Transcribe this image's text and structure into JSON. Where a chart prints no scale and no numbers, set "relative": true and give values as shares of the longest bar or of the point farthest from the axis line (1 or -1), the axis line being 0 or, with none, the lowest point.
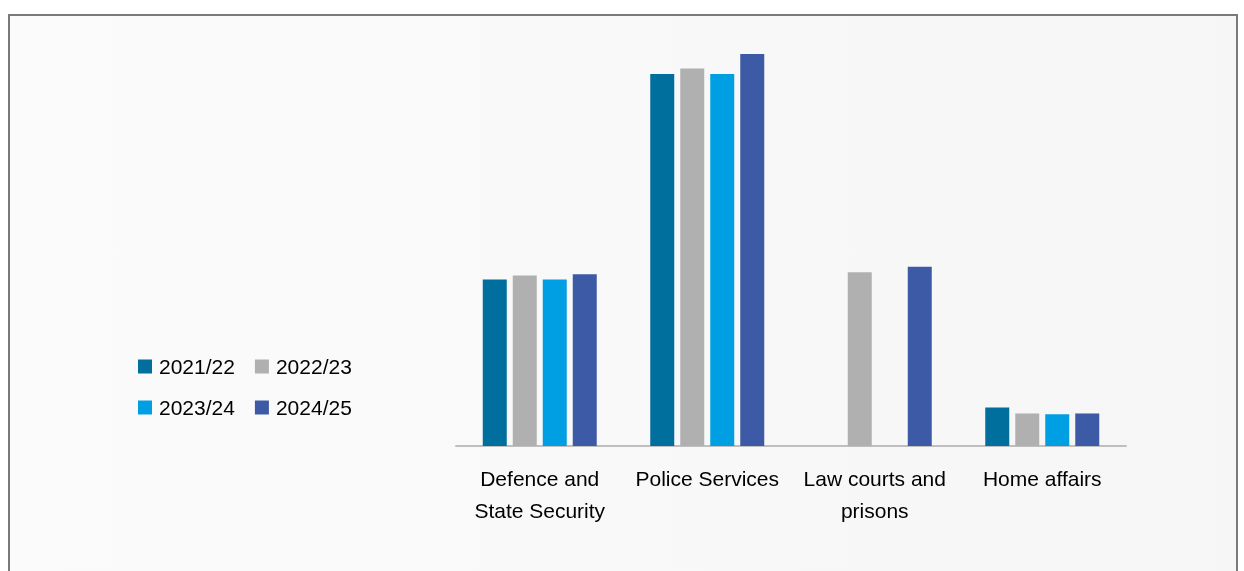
{
  "chart_data": {
    "type": "bar",
    "relative": true,
    "legend": "left",
    "categories": [
      "Defence and\nState Security",
      "Police Services",
      "Law courts and\nprisons",
      "Home affairs"
    ],
    "series": [
      {
        "name": "2021/22",
        "color": "#006f9e",
        "values": [
          0.425,
          0.949,
          null,
          0.098
        ]
      },
      {
        "name": "2022/23",
        "color": "#b0b0b0",
        "values": [
          0.435,
          0.963,
          0.443,
          0.083
        ]
      },
      {
        "name": "2023/24",
        "color": "#009fe3",
        "values": [
          0.425,
          0.949,
          null,
          0.081
        ]
      },
      {
        "name": "2024/25",
        "color": "#3c5aa6",
        "values": [
          0.438,
          1,
          0.457,
          0.083
        ]
      }
    ]
  }
}
